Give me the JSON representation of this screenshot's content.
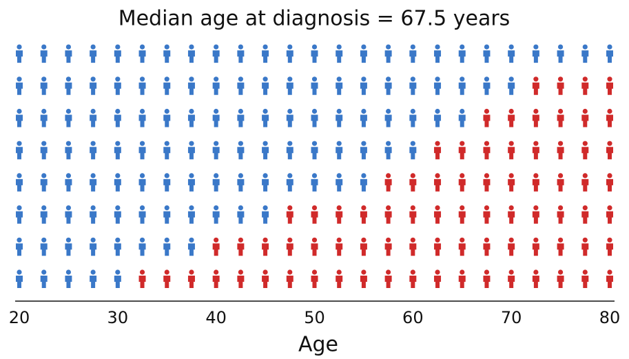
{
  "chart_data": {
    "type": "pictogram",
    "title": "Median age at diagnosis = 67.5 years",
    "x_label": "Age",
    "x": [
      20,
      22.5,
      25,
      27.5,
      30,
      32.5,
      35,
      37.5,
      40,
      42.5,
      45,
      47.5,
      50,
      52.5,
      55,
      57.5,
      60,
      62.5,
      65,
      67.5,
      70,
      72.5,
      75,
      77.5,
      80
    ],
    "series": [
      {
        "color": "#d02a2a",
        "values": [
          0,
          0,
          0,
          0,
          0,
          1,
          1,
          1,
          2,
          2,
          2,
          3,
          3,
          3,
          3,
          4,
          4,
          5,
          5,
          6,
          6,
          7,
          7,
          7,
          7
        ]
      },
      {
        "color": "#3a78c8",
        "values": [
          8,
          8,
          8,
          8,
          8,
          7,
          7,
          7,
          6,
          6,
          6,
          5,
          5,
          5,
          5,
          4,
          4,
          3,
          3,
          2,
          2,
          1,
          1,
          1,
          1
        ]
      }
    ],
    "xlim": [
      20,
      80
    ],
    "xticks": [
      20,
      30,
      40,
      50,
      60,
      70,
      80
    ]
  }
}
